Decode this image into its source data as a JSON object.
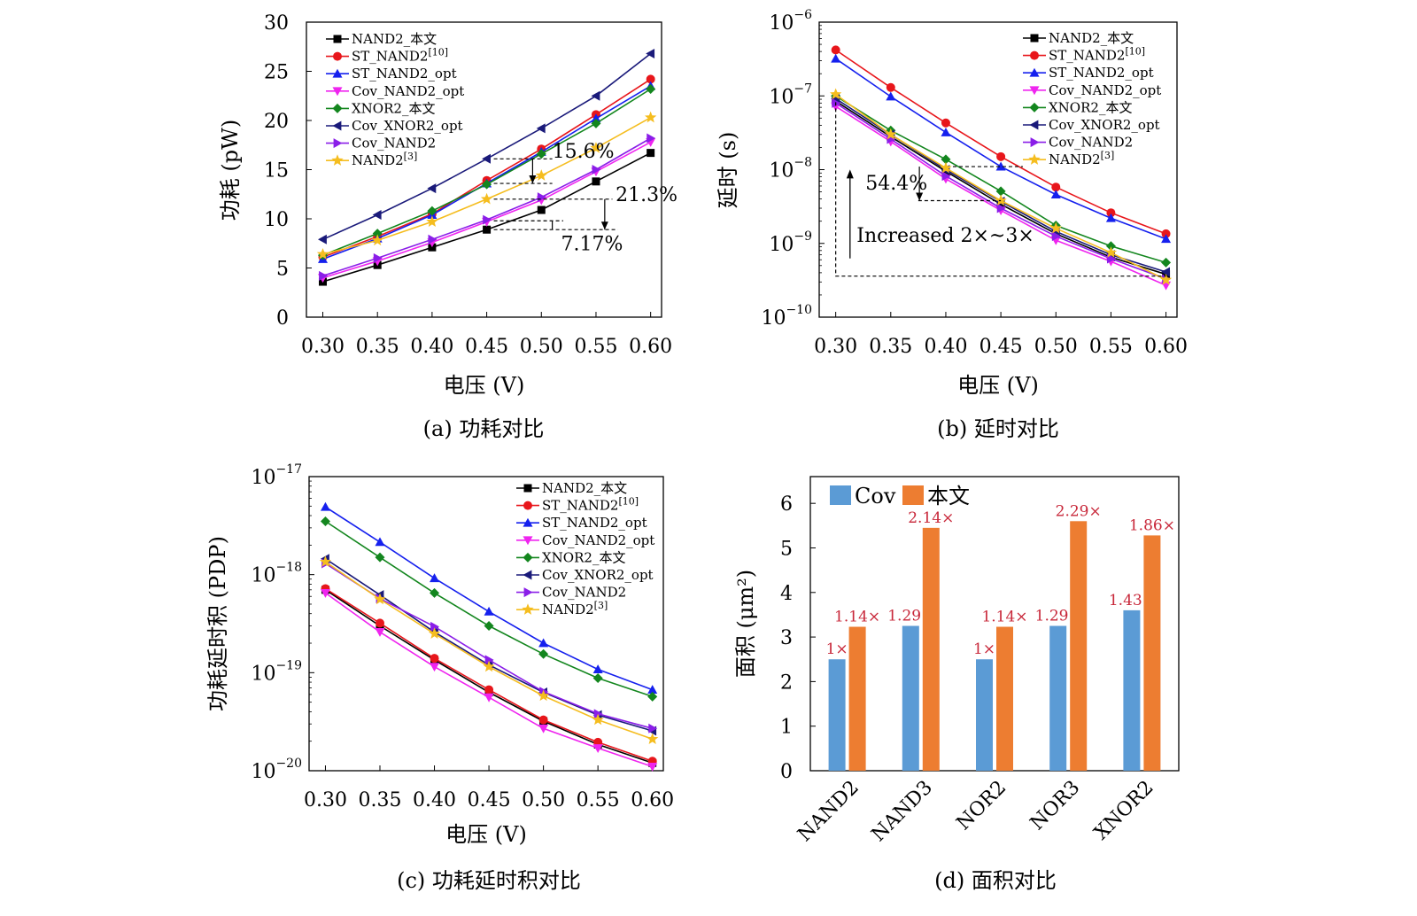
{
  "colors": {
    "NAND2_ours": "#000000",
    "ST_NAND2": "#e8161b",
    "ST_NAND2_opt": "#1520ee",
    "Cov_NAND2_opt": "#ef25ef",
    "XNOR2_ours": "#13861e",
    "Cov_XNOR2_opt": "#1a1a7a",
    "Cov_NAND2": "#8a1ee8",
    "NAND2_ref3": "#f5bd1f",
    "bar_cov": "#5b9bd5",
    "bar_ours": "#ed7d31",
    "bar_label": "#c8283a"
  },
  "chart_data": [
    {
      "id": "a",
      "type": "line",
      "caption": "(a) 功耗对比",
      "xlabel": "电压 (V)",
      "ylabel": "功耗 (pW)",
      "x": [
        0.3,
        0.35,
        0.4,
        0.45,
        0.5,
        0.55,
        0.6
      ],
      "x_ticks": [
        "0.30",
        "0.35",
        "0.40",
        "0.45",
        "0.50",
        "0.55",
        "0.60"
      ],
      "ylim": [
        0,
        30
      ],
      "y_ticks": [
        "0",
        "5",
        "10",
        "15",
        "20",
        "25",
        "30"
      ],
      "series": [
        {
          "name": "NAND2_本文",
          "sup": "",
          "color_key": "NAND2_ours",
          "marker": "square",
          "values": [
            3.6,
            5.3,
            7.1,
            8.9,
            10.9,
            13.8,
            16.7
          ]
        },
        {
          "name": "ST_NAND2",
          "sup": "[10]",
          "color_key": "ST_NAND2",
          "marker": "circle",
          "values": [
            6.1,
            8.2,
            10.5,
            13.9,
            17.1,
            20.6,
            24.2
          ]
        },
        {
          "name": "ST_NAND2_opt",
          "sup": "",
          "color_key": "ST_NAND2_opt",
          "marker": "tri-up",
          "values": [
            5.9,
            8.0,
            10.4,
            13.6,
            16.8,
            20.2,
            23.5
          ]
        },
        {
          "name": "Cov_NAND2_opt",
          "sup": "",
          "color_key": "Cov_NAND2_opt",
          "marker": "tri-down",
          "values": [
            4.0,
            5.7,
            7.6,
            9.7,
            11.9,
            14.8,
            17.8
          ]
        },
        {
          "name": "XNOR2_本文",
          "sup": "",
          "color_key": "XNOR2_ours",
          "marker": "diamond",
          "values": [
            6.3,
            8.5,
            10.8,
            13.5,
            16.6,
            19.7,
            23.2
          ]
        },
        {
          "name": "Cov_XNOR2_opt",
          "sup": "",
          "color_key": "Cov_XNOR2_opt",
          "marker": "tri-left",
          "values": [
            7.9,
            10.4,
            13.1,
            16.1,
            19.2,
            22.5,
            26.8
          ]
        },
        {
          "name": "Cov_NAND2",
          "sup": "",
          "color_key": "Cov_NAND2",
          "marker": "tri-right",
          "values": [
            4.2,
            6.0,
            7.9,
            9.9,
            12.2,
            15.0,
            18.2
          ]
        },
        {
          "name": "NAND2",
          "sup": "[3]",
          "color_key": "NAND2_ref3",
          "marker": "star",
          "values": [
            6.4,
            7.8,
            9.7,
            12.0,
            14.4,
            17.2,
            20.3
          ]
        }
      ],
      "annotations": [
        {
          "text": "15.6%",
          "x": 0.51,
          "y": 16.2
        },
        {
          "text": "21.3%",
          "x": 0.568,
          "y": 11.8
        },
        {
          "text": "7.17%",
          "x": 0.518,
          "y": 6.8
        }
      ]
    },
    {
      "id": "b",
      "type": "line",
      "caption": "(b) 延时对比",
      "xlabel": "电压 (V)",
      "ylabel": "延时 (s)",
      "x": [
        0.3,
        0.35,
        0.4,
        0.45,
        0.5,
        0.55,
        0.6
      ],
      "x_ticks": [
        "0.30",
        "0.35",
        "0.40",
        "0.45",
        "0.50",
        "0.55",
        "0.60"
      ],
      "yscale": "log",
      "ylim": [
        1e-10,
        1e-06
      ],
      "y_ticks": [
        {
          "base": "10",
          "exp": "−10",
          "value": 1e-10
        },
        {
          "base": "10",
          "exp": "−9",
          "value": 1e-09
        },
        {
          "base": "10",
          "exp": "−8",
          "value": 1e-08
        },
        {
          "base": "10",
          "exp": "−7",
          "value": 1e-07
        },
        {
          "base": "10",
          "exp": "−6",
          "value": 1e-06
        }
      ],
      "series": [
        {
          "name": "NAND2_本文",
          "sup": "",
          "color_key": "NAND2_ours",
          "marker": "square",
          "values": [
            8.5e-08,
            2.8e-08,
            9.5e-09,
            3.4e-09,
            1.35e-09,
            6.5e-10,
            3.8e-10
          ]
        },
        {
          "name": "ST_NAND2",
          "sup": "[10]",
          "color_key": "ST_NAND2",
          "marker": "circle",
          "values": [
            4.2e-07,
            1.3e-07,
            4.3e-08,
            1.5e-08,
            5.8e-09,
            2.6e-09,
            1.35e-09
          ]
        },
        {
          "name": "ST_NAND2_opt",
          "sup": "",
          "color_key": "ST_NAND2_opt",
          "marker": "tri-up",
          "values": [
            3.2e-07,
            9.8e-08,
            3.2e-08,
            1.1e-08,
            4.6e-09,
            2.2e-09,
            1.15e-09
          ]
        },
        {
          "name": "Cov_NAND2_opt",
          "sup": "",
          "color_key": "Cov_NAND2_opt",
          "marker": "tri-down",
          "values": [
            7.2e-08,
            2.4e-08,
            7.5e-09,
            2.8e-09,
            1.1e-09,
            5.7e-10,
            2.7e-10
          ]
        },
        {
          "name": "XNOR2_本文",
          "sup": "",
          "color_key": "XNOR2_ours",
          "marker": "diamond",
          "values": [
            1e-07,
            3.4e-08,
            1.38e-08,
            5.1e-09,
            1.75e-09,
            9.2e-10,
            5.5e-10
          ]
        },
        {
          "name": "Cov_XNOR2_opt",
          "sup": "",
          "color_key": "Cov_XNOR2_opt",
          "marker": "tri-left",
          "values": [
            9.2e-08,
            3e-08,
            1e-08,
            3.7e-09,
            1.45e-09,
            7e-10,
            4.1e-10
          ]
        },
        {
          "name": "Cov_NAND2",
          "sup": "",
          "color_key": "Cov_NAND2",
          "marker": "tri-right",
          "values": [
            8e-08,
            2.6e-08,
            8.2e-09,
            3e-09,
            1.25e-09,
            6.2e-10,
            3.3e-10
          ]
        },
        {
          "name": "NAND2",
          "sup": "[3]",
          "color_key": "NAND2_ref3",
          "marker": "star",
          "values": [
            1.05e-07,
            3e-08,
            1.05e-08,
            3.8e-09,
            1.6e-09,
            7.5e-10,
            3.2e-10
          ]
        }
      ],
      "annotations": [
        {
          "text": "54.4%",
          "x": 0.327,
          "y": 5.4e-09
        },
        {
          "text": "Increased 2×~3×",
          "x": 0.319,
          "y": 1.05e-09
        }
      ]
    },
    {
      "id": "c",
      "type": "line",
      "caption": "(c) 功耗延时积对比",
      "xlabel": "电压 (V)",
      "ylabel": "功耗延时积 (PDP)",
      "x": [
        0.3,
        0.35,
        0.4,
        0.45,
        0.5,
        0.55,
        0.6
      ],
      "x_ticks": [
        "0.30",
        "0.35",
        "0.40",
        "0.45",
        "0.50",
        "0.55",
        "0.60"
      ],
      "yscale": "log",
      "ylim": [
        1e-20,
        1e-17
      ],
      "y_ticks": [
        {
          "base": "10",
          "exp": "−20",
          "value": 1e-20
        },
        {
          "base": "10",
          "exp": "−19",
          "value": 1e-19
        },
        {
          "base": "10",
          "exp": "−18",
          "value": 1e-18
        },
        {
          "base": "10",
          "exp": "−17",
          "value": 1e-17
        }
      ],
      "series": [
        {
          "name": "NAND2_本文",
          "sup": "",
          "color_key": "NAND2_ours",
          "marker": "square",
          "values": [
            7e-19,
            3e-19,
            1.35e-19,
            6.3e-20,
            3.2e-20,
            1.85e-20,
            1.2e-20
          ]
        },
        {
          "name": "ST_NAND2",
          "sup": "[10]",
          "color_key": "ST_NAND2",
          "marker": "circle",
          "values": [
            7.2e-19,
            3.2e-19,
            1.4e-19,
            6.7e-20,
            3.3e-20,
            1.95e-20,
            1.25e-20
          ]
        },
        {
          "name": "ST_NAND2_opt",
          "sup": "",
          "color_key": "ST_NAND2_opt",
          "marker": "tri-up",
          "values": [
            4.9e-18,
            2.15e-18,
            9.2e-19,
            4.2e-19,
            2e-19,
            1.08e-19,
            6.7e-20
          ]
        },
        {
          "name": "Cov_NAND2_opt",
          "sup": "",
          "color_key": "Cov_NAND2_opt",
          "marker": "tri-down",
          "values": [
            6.5e-19,
            2.6e-19,
            1.15e-19,
            5.6e-20,
            2.7e-20,
            1.7e-20,
            1.1e-20
          ]
        },
        {
          "name": "XNOR2_本文",
          "sup": "",
          "color_key": "XNOR2_ours",
          "marker": "diamond",
          "values": [
            3.5e-18,
            1.5e-18,
            6.5e-19,
            3e-19,
            1.55e-19,
            8.8e-20,
            5.7e-20
          ]
        },
        {
          "name": "Cov_XNOR2_opt",
          "sup": "",
          "color_key": "Cov_XNOR2_opt",
          "marker": "tri-left",
          "values": [
            1.45e-18,
            6.2e-19,
            2.6e-19,
            1.2e-19,
            6.3e-20,
            3.7e-20,
            2.55e-20
          ]
        },
        {
          "name": "Cov_NAND2",
          "sup": "",
          "color_key": "Cov_NAND2",
          "marker": "tri-right",
          "values": [
            1.3e-18,
            5.7e-19,
            2.95e-19,
            1.35e-19,
            6.4e-20,
            3.8e-20,
            2.7e-20
          ]
        },
        {
          "name": "NAND2",
          "sup": "[3]",
          "color_key": "NAND2_ref3",
          "marker": "star",
          "values": [
            1.35e-18,
            5.6e-19,
            2.5e-19,
            1.15e-19,
            5.8e-20,
            3.3e-20,
            2.1e-20
          ]
        }
      ]
    },
    {
      "id": "d",
      "type": "bar",
      "caption": "(d) 面积对比",
      "ylabel": "面积 (μm²)",
      "categories": [
        "NAND2",
        "NAND3",
        "NOR2",
        "NOR3",
        "XNOR2"
      ],
      "ylim": [
        0,
        6.6
      ],
      "y_ticks": [
        "0",
        "1",
        "2",
        "3",
        "4",
        "5",
        "6"
      ],
      "series": [
        {
          "name": "Cov",
          "color_key": "bar_cov",
          "values": [
            2.5,
            3.25,
            2.5,
            3.25,
            3.6
          ],
          "labels": [
            "1×",
            "1.29×",
            "1×",
            "1.29×",
            "1.43×"
          ]
        },
        {
          "name": "本文",
          "color_key": "bar_ours",
          "values": [
            3.23,
            5.45,
            3.23,
            5.6,
            5.28
          ],
          "labels": [
            "1.14×",
            "2.14×",
            "1.14×",
            "2.29×",
            "1.86×"
          ]
        }
      ]
    }
  ]
}
